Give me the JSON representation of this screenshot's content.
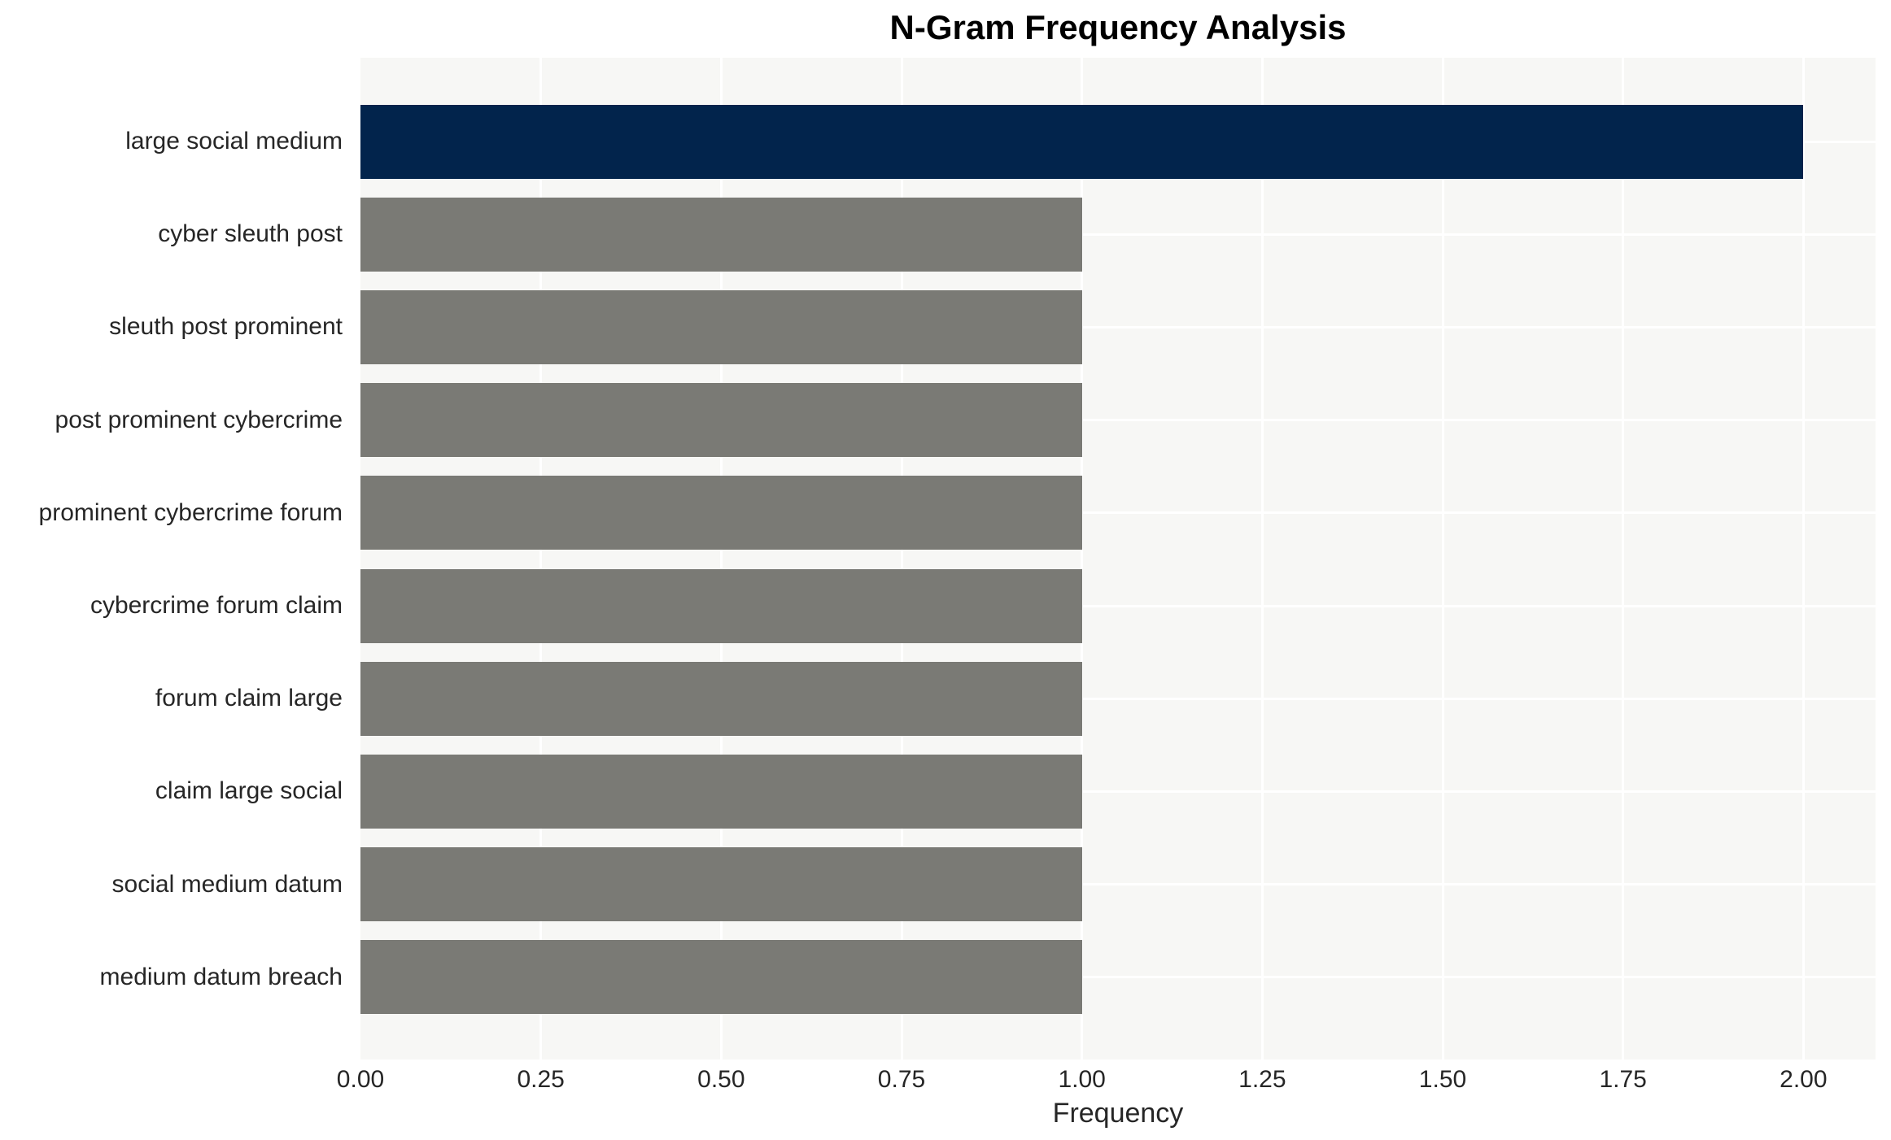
{
  "chart_data": {
    "type": "bar",
    "orientation": "horizontal",
    "title": "N-Gram Frequency Analysis",
    "xlabel": "Frequency",
    "ylabel": "",
    "categories": [
      "large social medium",
      "cyber sleuth post",
      "sleuth post prominent",
      "post prominent cybercrime",
      "prominent cybercrime forum",
      "cybercrime forum claim",
      "forum claim large",
      "claim large social",
      "social medium datum",
      "medium datum breach"
    ],
    "values": [
      2,
      1,
      1,
      1,
      1,
      1,
      1,
      1,
      1,
      1
    ],
    "bar_colors": [
      "#02244c",
      "#7a7a75",
      "#7a7a75",
      "#7a7a75",
      "#7a7a75",
      "#7a7a75",
      "#7a7a75",
      "#7a7a75",
      "#7a7a75",
      "#7a7a75"
    ],
    "xlim": [
      0,
      2.1
    ],
    "xticks": [
      {
        "value": 0.0,
        "label": "0.00"
      },
      {
        "value": 0.25,
        "label": "0.25"
      },
      {
        "value": 0.5,
        "label": "0.50"
      },
      {
        "value": 0.75,
        "label": "0.75"
      },
      {
        "value": 1.0,
        "label": "1.00"
      },
      {
        "value": 1.25,
        "label": "1.25"
      },
      {
        "value": 1.5,
        "label": "1.50"
      },
      {
        "value": 1.75,
        "label": "1.75"
      },
      {
        "value": 2.0,
        "label": "2.00"
      }
    ],
    "grid": true,
    "legend": false,
    "colors": {
      "highlight_bar": "#02244c",
      "default_bar": "#7a7a75",
      "plot_background": "#f7f7f5",
      "gridline": "#ffffff",
      "tick_text": "#262626",
      "title_text": "#000000"
    }
  }
}
